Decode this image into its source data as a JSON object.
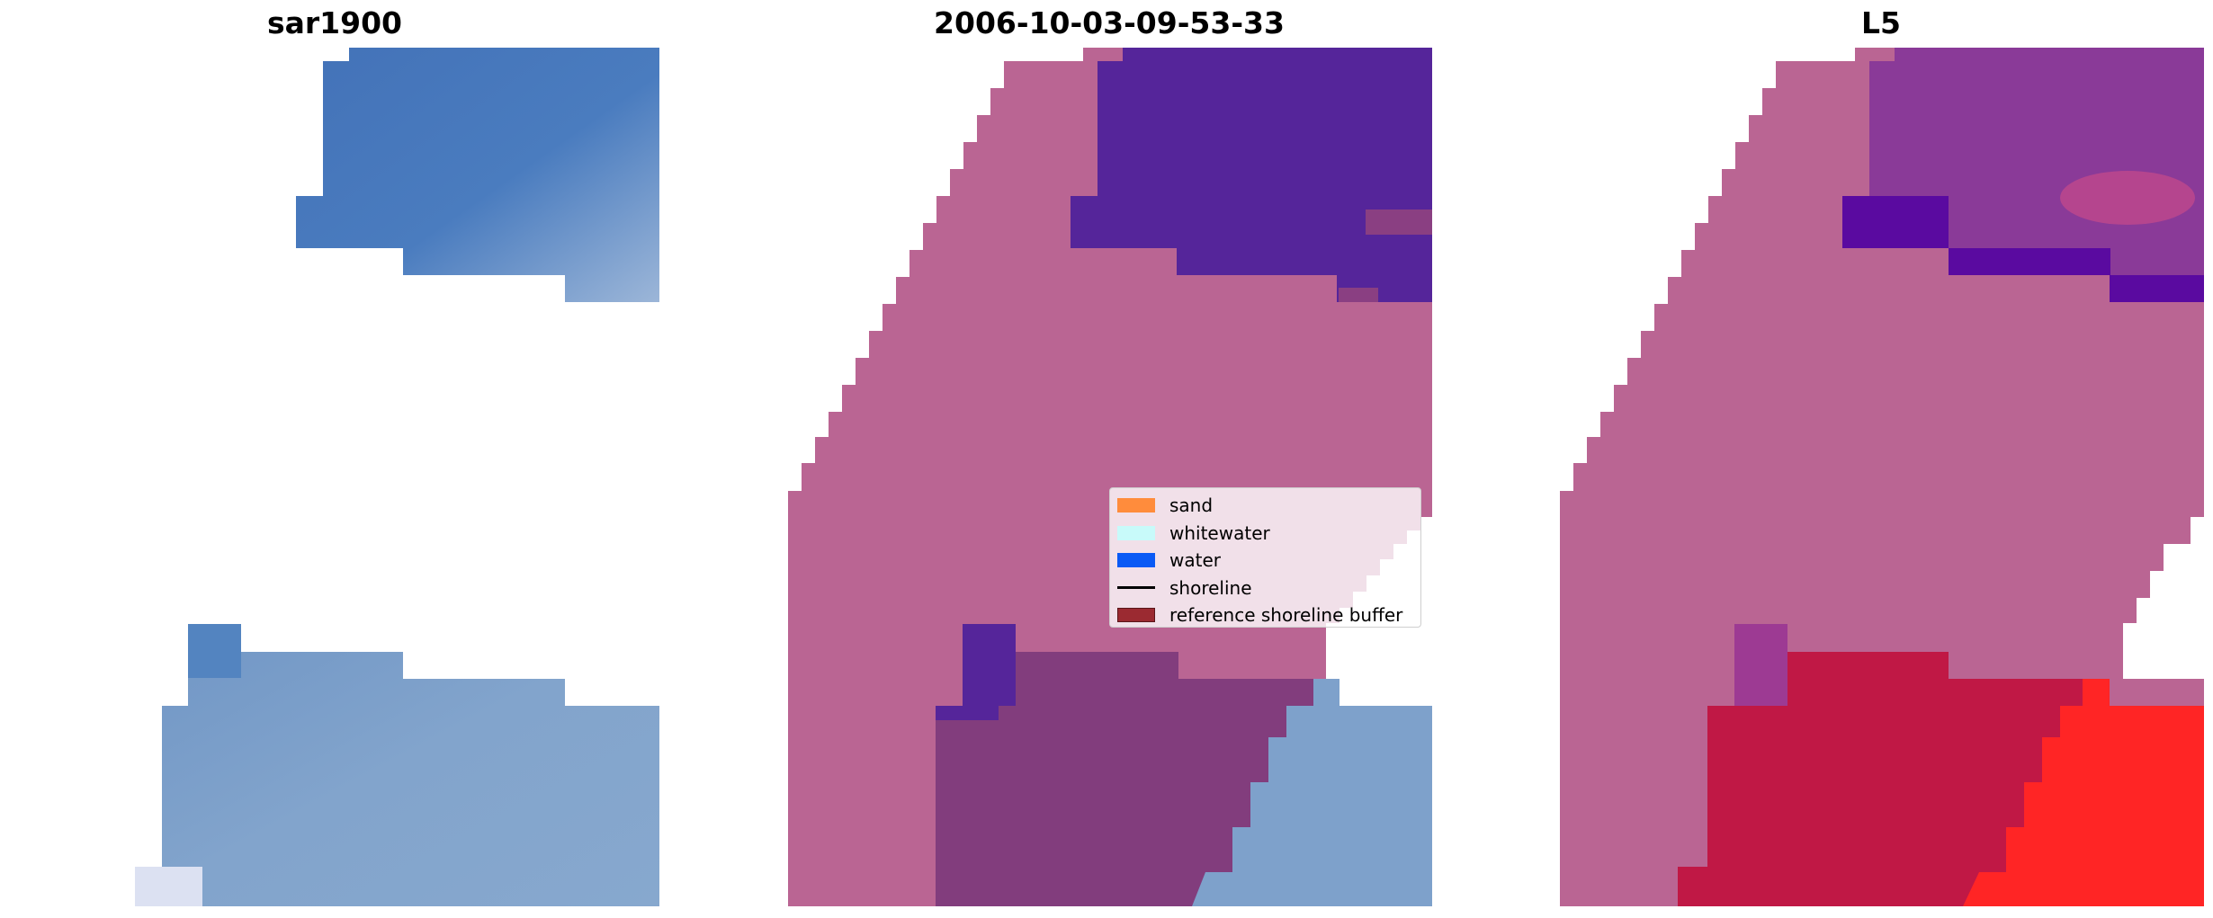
{
  "panels": [
    {
      "title": "sar1900"
    },
    {
      "title": "2006-10-03-09-53-33"
    },
    {
      "title": "L5"
    }
  ],
  "legend": {
    "items": [
      {
        "label": "sand",
        "color": "#ff8c3c",
        "kind": "patch"
      },
      {
        "label": "whitewater",
        "color": "#c8fafa",
        "kind": "patch"
      },
      {
        "label": "water",
        "color": "#0a5af5",
        "kind": "patch"
      },
      {
        "label": "shoreline",
        "color": "#000000",
        "kind": "line"
      },
      {
        "label": "reference shoreline buffer",
        "color": "#9b2a31",
        "kind": "patch"
      }
    ]
  },
  "colors": {
    "image_blue": "#4372b8",
    "image_light": "#7ea1cb",
    "buffer_pink": "#ba6593",
    "overlay_purple": "#55259a",
    "overlay_mauve": "#823d7d",
    "l5_purple": "#8a3a98",
    "l5_deep_purple": "#5a0aa0",
    "l5_crimson": "#c01845",
    "l5_red": "#ff2525"
  }
}
